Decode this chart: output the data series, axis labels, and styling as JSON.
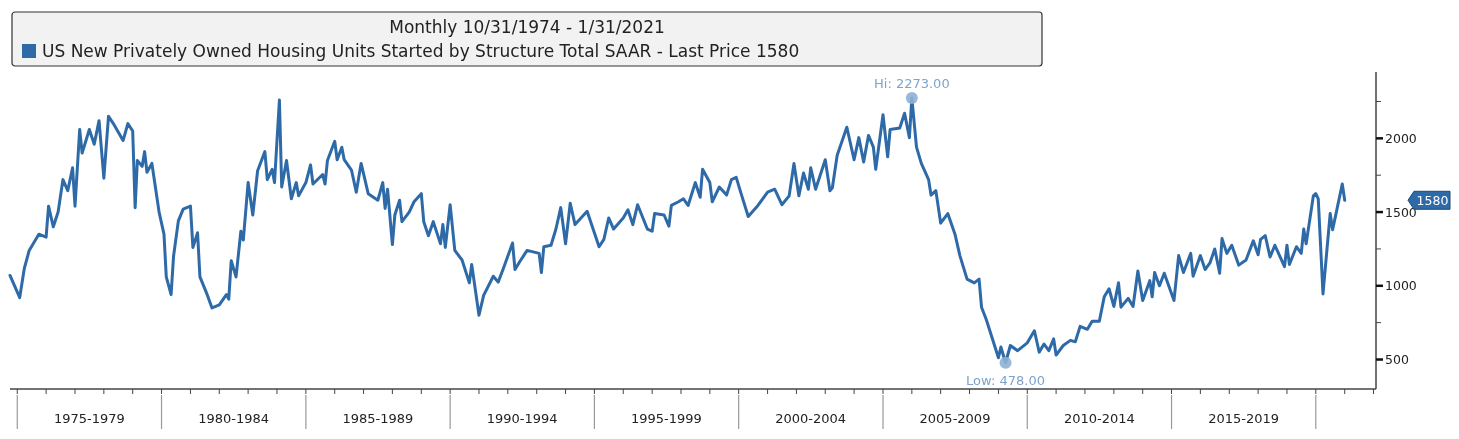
{
  "chart_data": {
    "type": "line",
    "title": "Monthly 10/31/1974 - 1/31/2021",
    "legend": "top left",
    "marker": "none",
    "line_style": "solid",
    "x": [
      "1974-10",
      "1975-02",
      "1975-04",
      "1975-06",
      "1975-10",
      "1976-01",
      "1976-02",
      "1976-04",
      "1976-06",
      "1976-08",
      "1976-10",
      "1976-12",
      "1977-01",
      "1977-03",
      "1977-04",
      "1977-07",
      "1977-09",
      "1977-11",
      "1978-01",
      "1978-03",
      "1978-05",
      "1978-09",
      "1978-11",
      "1979-01",
      "1979-02",
      "1979-03",
      "1979-05",
      "1979-06",
      "1979-07",
      "1979-09",
      "1979-12",
      "1980-02",
      "1980-03",
      "1980-05",
      "1980-06",
      "1980-08",
      "1980-10",
      "1981-01",
      "1981-02",
      "1981-04",
      "1981-05",
      "1981-08",
      "1981-10",
      "1982-01",
      "1982-04",
      "1982-05",
      "1982-06",
      "1982-08",
      "1982-10",
      "1982-11",
      "1983-01",
      "1983-03",
      "1983-05",
      "1983-08",
      "1983-09",
      "1983-11",
      "1983-12",
      "1984-02",
      "1984-03",
      "1984-05",
      "1984-07",
      "1984-09",
      "1984-10",
      "1985-01",
      "1985-03",
      "1985-04",
      "1985-08",
      "1985-09",
      "1985-10",
      "1986-01",
      "1986-02",
      "1986-04",
      "1986-05",
      "1986-08",
      "1986-10",
      "1986-12",
      "1987-03",
      "1987-07",
      "1987-09",
      "1987-10",
      "1987-11",
      "1988-01",
      "1988-02",
      "1988-04",
      "1988-05",
      "1988-08",
      "1988-10",
      "1989-01",
      "1989-02",
      "1989-04",
      "1989-06",
      "1989-09",
      "1989-10",
      "1989-11",
      "1990-01",
      "1990-03",
      "1990-06",
      "1990-09",
      "1990-10",
      "1991-01",
      "1991-03",
      "1991-07",
      "1991-09",
      "1991-11",
      "1992-03",
      "1992-04",
      "1992-06",
      "1992-09",
      "1993-02",
      "1993-03",
      "1993-04",
      "1993-07",
      "1993-09",
      "1993-11",
      "1994-01",
      "1994-03",
      "1994-05",
      "1994-10",
      "1995-03",
      "1995-05",
      "1995-07",
      "1995-09",
      "1996-01",
      "1996-03",
      "1996-05",
      "1996-07",
      "1996-11",
      "1997-01",
      "1997-02",
      "1997-06",
      "1997-08",
      "1997-09",
      "1997-12",
      "1998-02",
      "1998-04",
      "1998-07",
      "1998-09",
      "1998-10",
      "1999-01",
      "1999-02",
      "1999-05",
      "1999-08",
      "1999-10",
      "1999-12",
      "2000-02",
      "2000-05",
      "2000-09",
      "2001-01",
      "2001-04",
      "2001-07",
      "2001-10",
      "2001-12",
      "2002-02",
      "2002-04",
      "2002-06",
      "2002-07",
      "2002-09",
      "2003-01",
      "2003-03",
      "2003-04",
      "2003-06",
      "2003-10",
      "2004-01",
      "2004-03",
      "2004-05",
      "2004-07",
      "2004-09",
      "2004-10",
      "2005-01",
      "2005-03",
      "2005-04",
      "2005-08",
      "2005-10",
      "2005-12",
      "2006-01",
      "2006-03",
      "2006-05",
      "2006-08",
      "2006-09",
      "2006-11",
      "2007-01",
      "2007-04",
      "2007-07",
      "2007-09",
      "2007-12",
      "2008-03",
      "2008-05",
      "2008-06",
      "2008-08",
      "2009-01",
      "2009-02",
      "2009-04",
      "2009-06",
      "2009-09",
      "2010-01",
      "2010-04",
      "2010-06",
      "2010-08",
      "2010-10",
      "2010-12",
      "2011-01",
      "2011-04",
      "2011-07",
      "2011-09",
      "2011-11",
      "2012-02",
      "2012-04",
      "2012-07",
      "2012-09",
      "2012-11",
      "2013-01",
      "2013-03",
      "2013-04",
      "2013-07",
      "2013-09",
      "2013-11",
      "2014-01",
      "2014-04",
      "2014-05",
      "2014-06",
      "2014-08",
      "2014-10",
      "2015-02",
      "2015-04",
      "2015-06",
      "2015-09",
      "2015-10",
      "2016-01",
      "2016-03",
      "2016-05",
      "2016-07",
      "2016-09",
      "2016-10",
      "2016-12",
      "2017-02",
      "2017-05",
      "2017-08",
      "2017-11",
      "2018-01",
      "2018-02",
      "2018-04",
      "2018-06",
      "2018-08",
      "2018-12",
      "2019-01",
      "2019-02",
      "2019-05",
      "2019-07",
      "2019-08",
      "2019-09",
      "2019-12",
      "2020-01",
      "2020-02",
      "2020-04",
      "2020-07",
      "2020-08",
      "2020-10",
      "2020-12",
      "2021-01"
    ],
    "series": [
      {
        "name": "US New Privately Owned Housing Units Started by Structure Total SAAR - Last Price 1580",
        "color": "#2e6aa8",
        "values": [
          1070,
          920,
          1120,
          1240,
          1350,
          1330,
          1540,
          1400,
          1500,
          1720,
          1645,
          1800,
          1540,
          2060,
          1900,
          2060,
          1960,
          2120,
          1730,
          2150,
          2100,
          1985,
          2100,
          2050,
          1530,
          1850,
          1810,
          1910,
          1770,
          1830,
          1500,
          1350,
          1060,
          940,
          1200,
          1440,
          1520,
          1540,
          1260,
          1360,
          1060,
          940,
          850,
          870,
          940,
          910,
          1170,
          1060,
          1370,
          1310,
          1700,
          1480,
          1780,
          1910,
          1720,
          1790,
          1700,
          2260,
          1670,
          1850,
          1590,
          1700,
          1610,
          1700,
          1820,
          1690,
          1755,
          1690,
          1850,
          1980,
          1855,
          1940,
          1855,
          1785,
          1635,
          1830,
          1625,
          1580,
          1700,
          1525,
          1655,
          1280,
          1480,
          1580,
          1435,
          1500,
          1570,
          1625,
          1435,
          1340,
          1435,
          1285,
          1415,
          1260,
          1550,
          1240,
          1175,
          1020,
          1145,
          800,
          935,
          1065,
          1025,
          1110,
          1290,
          1110,
          1165,
          1240,
          1220,
          1090,
          1265,
          1275,
          1385,
          1530,
          1285,
          1560,
          1415,
          1505,
          1265,
          1315,
          1460,
          1385,
          1460,
          1515,
          1415,
          1550,
          1385,
          1370,
          1490,
          1480,
          1405,
          1545,
          1570,
          1590,
          1545,
          1700,
          1600,
          1790,
          1700,
          1570,
          1670,
          1615,
          1720,
          1735,
          1625,
          1470,
          1545,
          1635,
          1655,
          1550,
          1610,
          1830,
          1610,
          1765,
          1655,
          1800,
          1655,
          1855,
          1645,
          1665,
          1885,
          2075,
          1855,
          2005,
          1840,
          2020,
          1940,
          1790,
          2160,
          1875,
          2060,
          2070,
          2170,
          2005,
          2273,
          1940,
          1830,
          1720,
          1615,
          1645,
          1425,
          1490,
          1350,
          1205,
          1045,
          1020,
          1045,
          855,
          770,
          512,
          585,
          478,
          595,
          560,
          613,
          695,
          550,
          605,
          560,
          640,
          530,
          595,
          630,
          620,
          725,
          705,
          760,
          760,
          925,
          980,
          860,
          1020,
          855,
          915,
          860,
          1100,
          900,
          1035,
          925,
          1090,
          1000,
          1085,
          900,
          1205,
          1090,
          1220,
          1065,
          1205,
          1110,
          1155,
          1250,
          1085,
          1320,
          1220,
          1275,
          1140,
          1175,
          1305,
          1210,
          1315,
          1340,
          1195,
          1275,
          1130,
          1275,
          1145,
          1265,
          1220,
          1385,
          1285,
          1610,
          1625,
          1590,
          945,
          1490,
          1380,
          1535,
          1690,
          1580
        ]
      }
    ],
    "xlim": [
      "1974-10",
      "2022-02"
    ],
    "xticks": [
      {
        "value": "1975-01",
        "label": null
      },
      {
        "value": "1976-01",
        "label": null
      },
      {
        "value": "1977-01",
        "label": null
      },
      {
        "value": "1978-01",
        "label": null
      },
      {
        "value": "1979-01",
        "label": null
      },
      {
        "value": "1980-01",
        "label": null
      },
      {
        "value": "1981-01",
        "label": null
      },
      {
        "value": "1982-01",
        "label": null
      },
      {
        "value": "1983-01",
        "label": null
      },
      {
        "value": "1984-01",
        "label": null
      },
      {
        "value": "1985-01",
        "label": null
      },
      {
        "value": "1986-01",
        "label": null
      },
      {
        "value": "1987-01",
        "label": null
      },
      {
        "value": "1988-01",
        "label": null
      },
      {
        "value": "1989-01",
        "label": null
      },
      {
        "value": "1990-01",
        "label": null
      },
      {
        "value": "1991-01",
        "label": null
      },
      {
        "value": "1992-01",
        "label": null
      },
      {
        "value": "1993-01",
        "label": null
      },
      {
        "value": "1994-01",
        "label": null
      },
      {
        "value": "1995-01",
        "label": null
      },
      {
        "value": "1996-01",
        "label": null
      },
      {
        "value": "1997-01",
        "label": null
      },
      {
        "value": "1998-01",
        "label": null
      },
      {
        "value": "1999-01",
        "label": null
      },
      {
        "value": "2000-01",
        "label": null
      },
      {
        "value": "2001-01",
        "label": null
      },
      {
        "value": "2002-01",
        "label": null
      },
      {
        "value": "2003-01",
        "label": null
      },
      {
        "value": "2004-01",
        "label": null
      },
      {
        "value": "2005-01",
        "label": null
      },
      {
        "value": "2006-01",
        "label": null
      },
      {
        "value": "2007-01",
        "label": null
      },
      {
        "value": "2008-01",
        "label": null
      },
      {
        "value": "2009-01",
        "label": null
      },
      {
        "value": "2010-01",
        "label": null
      },
      {
        "value": "2011-01",
        "label": null
      },
      {
        "value": "2012-01",
        "label": null
      },
      {
        "value": "2013-01",
        "label": null
      },
      {
        "value": "2014-01",
        "label": null
      },
      {
        "value": "2015-01",
        "label": null
      },
      {
        "value": "2016-01",
        "label": null
      },
      {
        "value": "2017-01",
        "label": null
      },
      {
        "value": "2018-01",
        "label": null
      },
      {
        "value": "2019-01",
        "label": null
      },
      {
        "value": "2020-01",
        "label": null
      },
      {
        "value": "2021-01",
        "label": null
      },
      {
        "value": "2022-01",
        "label": null
      },
      {
        "value": "1977-07",
        "label": "1975-1979"
      },
      {
        "value": "1982-07",
        "label": "1980-1984"
      },
      {
        "value": "1987-07",
        "label": "1985-1989"
      },
      {
        "value": "1992-07",
        "label": "1990-1994"
      },
      {
        "value": "1997-07",
        "label": "1995-1999"
      },
      {
        "value": "2002-07",
        "label": "2000-2004"
      },
      {
        "value": "2007-07",
        "label": "2005-2009"
      },
      {
        "value": "2012-07",
        "label": "2010-2014"
      },
      {
        "value": "2017-07",
        "label": "2015-2019"
      }
    ],
    "ylim": [
      300,
      2450
    ],
    "yticks": [
      500,
      {
        "value": 750,
        "label": null
      },
      1000,
      {
        "value": 1250,
        "label": null
      },
      1500,
      {
        "value": 1750,
        "label": null
      },
      2000,
      {
        "value": 2250,
        "label": null
      }
    ],
    "annotations": [
      {
        "text": "Hi: 2273.00",
        "x": "2006-01",
        "y": 2273
      },
      {
        "text": "Low: 478.00",
        "x": "2009-04",
        "y": 478
      },
      "1580"
    ]
  }
}
